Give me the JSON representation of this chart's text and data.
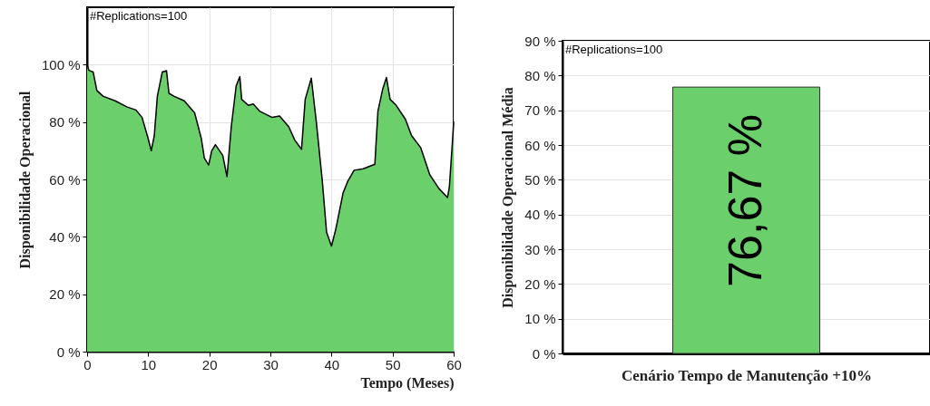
{
  "chart_data": [
    {
      "type": "area",
      "xlabel": "Tempo (Meses)",
      "ylabel": "Disponibilidade Operacional",
      "annotations": [
        "#Replications=100"
      ],
      "xlim": [
        0,
        60
      ],
      "xticks": [
        0,
        10,
        20,
        30,
        40,
        50,
        60
      ],
      "ylim": [
        0,
        120
      ],
      "yticks": [
        {
          "value": 0,
          "label": "0 %"
        },
        {
          "value": 20,
          "label": "20 %"
        },
        {
          "value": 40,
          "label": "40 %"
        },
        {
          "value": 60,
          "label": "60 %"
        },
        {
          "value": 80,
          "label": "80 %"
        },
        {
          "value": 100,
          "label": "100 %"
        }
      ],
      "grid": true,
      "legend": false,
      "x": [
        0,
        0.3,
        1,
        1.6,
        2.6,
        4.6,
        6.5,
        8,
        9,
        10,
        10.5,
        11,
        11.5,
        12.3,
        13,
        13.4,
        14.2,
        15.9,
        17.6,
        18.7,
        19.2,
        19.9,
        20.4,
        21,
        22.2,
        22.9,
        23.6,
        24.4,
        25,
        25.3,
        26.4,
        27.2,
        28.3,
        30.3,
        31.5,
        33,
        34,
        35.1,
        35.7,
        36.7,
        37.5,
        38.5,
        39.2,
        40,
        40.7,
        41.9,
        42.7,
        43.7,
        45.2,
        47.1,
        47.6,
        48.4,
        49,
        49.6,
        50.6,
        52.1,
        53.1,
        54.6,
        56.1,
        57.6,
        59,
        59.3,
        59.8,
        60
      ],
      "series": [
        {
          "color": "#6bcf6b",
          "values": [
            100,
            98,
            97.4,
            91,
            89,
            87.4,
            85.3,
            84.2,
            81.6,
            74.2,
            70,
            75.3,
            89,
            97.4,
            97.9,
            90,
            89,
            87.4,
            83.2,
            74.2,
            67.4,
            65,
            70,
            72.1,
            68.4,
            61,
            78.4,
            92.6,
            95.8,
            87.9,
            85.8,
            86.3,
            83.7,
            81.6,
            82.1,
            78.4,
            73.7,
            70.5,
            87.9,
            95.3,
            80.5,
            59.5,
            41.6,
            36.8,
            42.6,
            55.3,
            59.5,
            63.2,
            63.7,
            65.3,
            83.7,
            91.6,
            95.5,
            87.9,
            85.8,
            81,
            75.3,
            71.1,
            61.6,
            56.8,
            53.7,
            57.4,
            73.2,
            80
          ]
        }
      ]
    },
    {
      "type": "bar",
      "xlabel": "Cenário Tempo de Manutenção +10%",
      "ylabel": "Disponibilidade Operacional Média",
      "annotations": [
        "#Replications=100"
      ],
      "categories": [
        null
      ],
      "ylim": [
        0,
        90
      ],
      "yticks": [
        {
          "value": 0,
          "label": "0 %"
        },
        {
          "value": 10,
          "label": "10 %"
        },
        {
          "value": 20,
          "label": "20 %"
        },
        {
          "value": 30,
          "label": "30 %"
        },
        {
          "value": 40,
          "label": "40 %"
        },
        {
          "value": 50,
          "label": "50 %"
        },
        {
          "value": 60,
          "label": "60 %"
        },
        {
          "value": 70,
          "label": "70 %"
        },
        {
          "value": 80,
          "label": "80 %"
        },
        {
          "value": 90,
          "label": "90 %"
        }
      ],
      "grid": "y",
      "legend": false,
      "series": [
        {
          "color": "#6bcf6b",
          "values": [
            76.67
          ],
          "value_labels": [
            "76,67 %"
          ]
        }
      ]
    }
  ]
}
